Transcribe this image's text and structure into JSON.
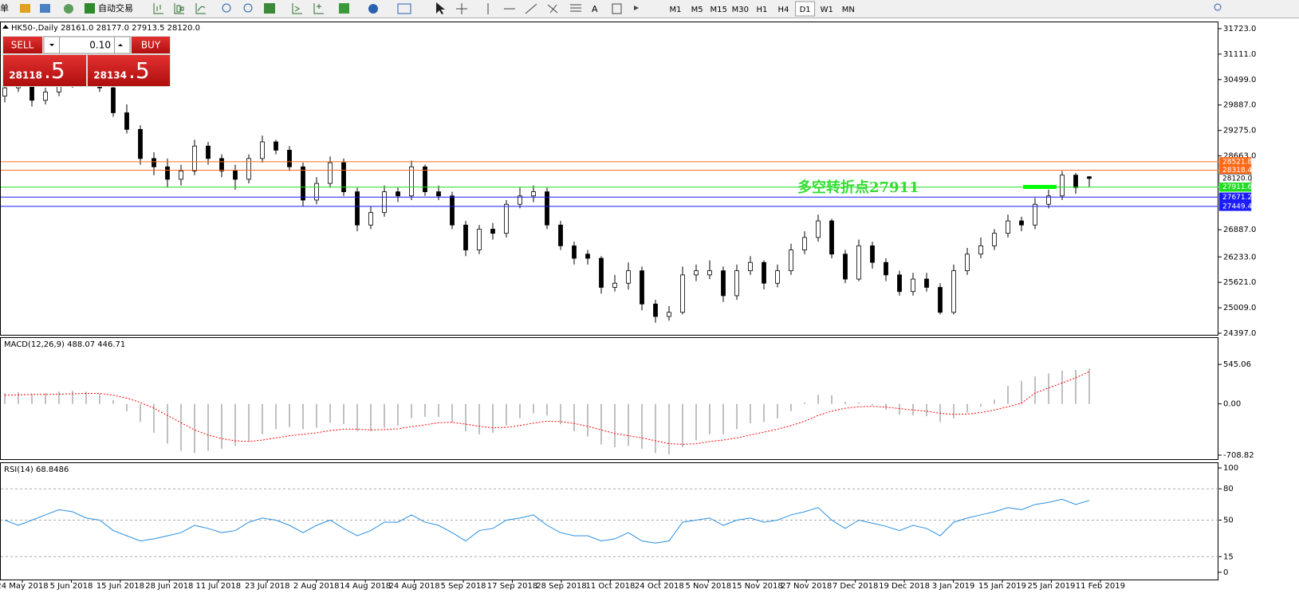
{
  "toolbar": {
    "cut_text": "单",
    "auto_trade": "自动交易",
    "timeframes": [
      "M1",
      "M5",
      "M15",
      "M30",
      "H1",
      "H4",
      "D1",
      "W1",
      "MN"
    ],
    "active_index": 6
  },
  "trade_panel": {
    "sell": "SELL",
    "buy": "BUY",
    "lot": "0.10",
    "bid_big": "28118",
    "bid_small": ".5",
    "ask_big": "28134",
    "ask_small": ".5"
  },
  "x_axis": {
    "labels": [
      "24 May 2018",
      "5 Jun 2018",
      "15 Jun 2018",
      "28 Jun 2018",
      "11 Jul 2018",
      "23 Jul 2018",
      "2 Aug 2018",
      "14 Aug 2018",
      "24 Aug 2018",
      "5 Sep 2018",
      "17 Sep 2018",
      "28 Sep 2018",
      "11 Oct 2018",
      "24 Oct 2018",
      "5 Nov 2018",
      "15 Nov 2018",
      "27 Nov 2018",
      "7 Dec 2018",
      "19 Dec 2018",
      "3 Jan 2019",
      "15 Jan 2019",
      "25 Jan 2019",
      "11 Feb 2019"
    ]
  },
  "chart_data": [
    {
      "type": "candlestick",
      "title": "HK50-,Daily  28161.0 28177.0 27913.5 28120.0",
      "up_color": "#ffffff",
      "down_color": "#000000",
      "ohlc": [
        [
          30100,
          30450,
          29950,
          30300
        ],
        [
          30300,
          30600,
          30200,
          30500
        ],
        [
          30500,
          30550,
          29850,
          30000
        ],
        [
          30000,
          30300,
          29900,
          30200
        ],
        [
          30200,
          30500,
          30100,
          30400
        ],
        [
          30400,
          30600,
          30300,
          30500
        ],
        [
          30500,
          30700,
          30400,
          30600
        ],
        [
          30600,
          30650,
          30200,
          30300
        ],
        [
          30300,
          30350,
          29600,
          29700
        ],
        [
          29700,
          29900,
          29200,
          29300
        ],
        [
          29300,
          29400,
          28450,
          28600
        ],
        [
          28600,
          28750,
          28200,
          28400
        ],
        [
          28400,
          28600,
          27900,
          28100
        ],
        [
          28100,
          28450,
          27950,
          28300
        ],
        [
          28300,
          29050,
          28200,
          28900
        ],
        [
          28900,
          29000,
          28450,
          28600
        ],
        [
          28600,
          28700,
          28150,
          28300
        ],
        [
          28300,
          28450,
          27850,
          28100
        ],
        [
          28100,
          28700,
          28000,
          28600
        ],
        [
          28600,
          29150,
          28500,
          29000
        ],
        [
          29000,
          29050,
          28700,
          28800
        ],
        [
          28800,
          28900,
          28300,
          28400
        ],
        [
          28400,
          28500,
          27450,
          27600
        ],
        [
          27600,
          28150,
          27500,
          28000
        ],
        [
          28000,
          28650,
          27900,
          28500
        ],
        [
          28500,
          28600,
          27700,
          27800
        ],
        [
          27800,
          27900,
          26850,
          27000
        ],
        [
          27000,
          27450,
          26900,
          27300
        ],
        [
          27300,
          27950,
          27200,
          27800
        ],
        [
          27800,
          27900,
          27550,
          27700
        ],
        [
          27700,
          28550,
          27600,
          28400
        ],
        [
          28400,
          28450,
          27700,
          27800
        ],
        [
          27800,
          27950,
          27600,
          27700
        ],
        [
          27700,
          27800,
          26900,
          27000
        ],
        [
          27000,
          27100,
          26250,
          26400
        ],
        [
          26400,
          27000,
          26300,
          26900
        ],
        [
          26900,
          27050,
          26650,
          26800
        ],
        [
          26800,
          27600,
          26700,
          27500
        ],
        [
          27500,
          27900,
          27400,
          27700
        ],
        [
          27700,
          27950,
          27550,
          27800
        ],
        [
          27800,
          27900,
          26900,
          27000
        ],
        [
          27000,
          27100,
          26400,
          26500
        ],
        [
          26500,
          26600,
          26050,
          26200
        ],
        [
          26300,
          26400,
          26050,
          26200
        ],
        [
          26200,
          26250,
          25350,
          25500
        ],
        [
          25500,
          25800,
          25400,
          25600
        ],
        [
          25600,
          26100,
          25450,
          25900
        ],
        [
          25900,
          26000,
          24950,
          25100
        ],
        [
          25100,
          25200,
          24650,
          24800
        ],
        [
          24800,
          25050,
          24700,
          24900
        ],
        [
          24900,
          26000,
          24850,
          25800
        ],
        [
          25800,
          26050,
          25650,
          25900
        ],
        [
          25800,
          26150,
          25700,
          25900
        ],
        [
          25900,
          26000,
          25150,
          25300
        ],
        [
          25300,
          26050,
          25200,
          25900
        ],
        [
          25900,
          26250,
          25800,
          26100
        ],
        [
          26100,
          26150,
          25450,
          25600
        ],
        [
          25600,
          26050,
          25500,
          25900
        ],
        [
          25900,
          26550,
          25800,
          26400
        ],
        [
          26400,
          26850,
          26300,
          26700
        ],
        [
          26700,
          27250,
          26600,
          27100
        ],
        [
          27100,
          27150,
          26200,
          26300
        ],
        [
          26300,
          26400,
          25600,
          25700
        ],
        [
          25700,
          26650,
          25650,
          26500
        ],
        [
          26500,
          26600,
          25950,
          26100
        ],
        [
          26100,
          26200,
          25650,
          25800
        ],
        [
          25800,
          25900,
          25300,
          25400
        ],
        [
          25400,
          25850,
          25300,
          25700
        ],
        [
          25700,
          25850,
          25400,
          25500
        ],
        [
          25500,
          25600,
          24850,
          24900
        ],
        [
          24900,
          26050,
          24850,
          25900
        ],
        [
          25900,
          26450,
          25800,
          26300
        ],
        [
          26300,
          26700,
          26200,
          26500
        ],
        [
          26500,
          26900,
          26400,
          26800
        ],
        [
          26800,
          27250,
          26700,
          27100
        ],
        [
          27100,
          27200,
          26850,
          27000
        ],
        [
          27000,
          27650,
          26900,
          27500
        ],
        [
          27500,
          27850,
          27400,
          27700
        ],
        [
          27700,
          28300,
          27600,
          28200
        ],
        [
          28200,
          28250,
          27750,
          27900
        ],
        [
          28161,
          28177,
          27913.5,
          28120
        ]
      ],
      "ylim": [
        24340,
        31895
      ],
      "yticks": [
        {
          "value": 31723,
          "label": "31723.0"
        },
        {
          "value": 31111,
          "label": "31111.0"
        },
        {
          "value": 30499,
          "label": "30499.0"
        },
        {
          "value": 29887,
          "label": "29887.0"
        },
        {
          "value": 29275,
          "label": "29275.0"
        },
        {
          "value": 28663,
          "label": "28663.0"
        },
        {
          "value": 26887,
          "label": "26887.0"
        },
        {
          "value": 26233,
          "label": "26233.0"
        },
        {
          "value": 25621,
          "label": "25621.0"
        },
        {
          "value": 25009,
          "label": "25009.0"
        },
        {
          "value": 24397,
          "label": "24397.0"
        }
      ],
      "lines": [
        {
          "value": 28521.8,
          "label": "28521.8",
          "color": "#ff6a1a",
          "text_color": "#ffffff",
          "line": true
        },
        {
          "value": 28318.4,
          "label": "28318.4",
          "color": "#ff6a1a",
          "text_color": "#ffffff",
          "line": true
        },
        {
          "value": 28120,
          "label": "28120.0",
          "color": "#ffffff",
          "text_color": "#000000",
          "line": false
        },
        {
          "value": 27911.6,
          "label": "27911.6",
          "color": "#22dd22",
          "text_color": "#ffffff",
          "line": true
        },
        {
          "value": 27671.2,
          "label": "27671.2",
          "color": "#1a1aff",
          "text_color": "#ffffff",
          "line": true
        },
        {
          "value": 27449.4,
          "label": "27449.4",
          "color": "#1a1aff",
          "text_color": "#ffffff",
          "line": true
        }
      ],
      "annotation": "多空转折点27911",
      "annotation_color": "#33dd33"
    },
    {
      "type": "macd",
      "title": "MACD(12,26,9) 488.07 446.71",
      "histogram_color": "#c0c0c0",
      "signal_color": "#ff0000",
      "histogram": [
        150,
        160,
        140,
        150,
        170,
        180,
        170,
        140,
        50,
        -100,
        -250,
        -400,
        -550,
        -650,
        -680,
        -650,
        -620,
        -580,
        -520,
        -420,
        -350,
        -320,
        -350,
        -330,
        -260,
        -280,
        -380,
        -380,
        -330,
        -300,
        -200,
        -180,
        -180,
        -260,
        -380,
        -420,
        -400,
        -300,
        -200,
        -130,
        -160,
        -280,
        -380,
        -450,
        -560,
        -600,
        -580,
        -620,
        -680,
        -700,
        -600,
        -500,
        -420,
        -420,
        -350,
        -270,
        -250,
        -200,
        -100,
        20,
        130,
        120,
        30,
        20,
        -20,
        -80,
        -150,
        -160,
        -170,
        -250,
        -200,
        -120,
        -40,
        60,
        250,
        320,
        380,
        420,
        460,
        470,
        488.07
      ],
      "signal": [
        120,
        125,
        130,
        130,
        135,
        140,
        145,
        145,
        120,
        80,
        20,
        -60,
        -160,
        -260,
        -360,
        -430,
        -480,
        -510,
        -520,
        -500,
        -470,
        -440,
        -420,
        -400,
        -370,
        -350,
        -350,
        -360,
        -355,
        -345,
        -315,
        -290,
        -260,
        -255,
        -280,
        -310,
        -330,
        -325,
        -300,
        -265,
        -240,
        -245,
        -270,
        -310,
        -360,
        -410,
        -440,
        -470,
        -510,
        -550,
        -560,
        -550,
        -520,
        -500,
        -470,
        -430,
        -390,
        -350,
        -300,
        -240,
        -160,
        -100,
        -60,
        -40,
        -35,
        -45,
        -65,
        -85,
        -100,
        -130,
        -145,
        -140,
        -120,
        -85,
        -40,
        10,
        150,
        220,
        290,
        360,
        446.71
      ],
      "ylim": [
        -775,
        911
      ],
      "yticks": [
        {
          "value": 545.06,
          "label": "545.06"
        },
        {
          "value": 0,
          "label": "0.00"
        },
        {
          "value": -708.82,
          "label": "-708.82"
        }
      ]
    },
    {
      "type": "rsi",
      "title": "RSI(14) 68.8486",
      "color": "#2a8fe0",
      "values": [
        50,
        45,
        50,
        55,
        60,
        58,
        52,
        50,
        40,
        35,
        30,
        32,
        35,
        38,
        45,
        42,
        38,
        40,
        48,
        52,
        50,
        45,
        38,
        45,
        50,
        42,
        35,
        40,
        48,
        48,
        55,
        48,
        45,
        38,
        30,
        40,
        42,
        50,
        52,
        55,
        45,
        38,
        35,
        35,
        30,
        32,
        38,
        30,
        28,
        30,
        48,
        50,
        52,
        45,
        50,
        52,
        48,
        50,
        55,
        58,
        62,
        50,
        42,
        50,
        47,
        44,
        40,
        45,
        42,
        35,
        48,
        52,
        55,
        58,
        62,
        60,
        65,
        67,
        70,
        65,
        68.8486
      ],
      "ylim": [
        -7.7,
        104.6
      ],
      "yticks": [
        100,
        80,
        50,
        15,
        0
      ]
    }
  ]
}
